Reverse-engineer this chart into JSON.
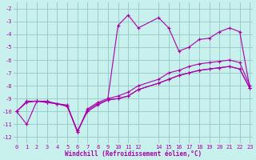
{
  "bg_color": "#c8f0ec",
  "grid_color": "#99cccc",
  "line_color": "#aa00aa",
  "xlim": [
    -0.3,
    23.3
  ],
  "ylim": [
    -12.5,
    -1.5
  ],
  "yticks": [
    -2,
    -3,
    -4,
    -5,
    -6,
    -7,
    -8,
    -9,
    -10,
    -11,
    -12
  ],
  "xticks": [
    0,
    1,
    2,
    3,
    4,
    5,
    6,
    7,
    8,
    9,
    10,
    11,
    12,
    14,
    15,
    16,
    17,
    18,
    19,
    20,
    21,
    22,
    23
  ],
  "xlabel": "Windchill (Refroidissement éolien,°C)",
  "series": [
    {
      "x": [
        0,
        1,
        2,
        3,
        4,
        5,
        6,
        7,
        8,
        9,
        10,
        11,
        12,
        14,
        15,
        16,
        17,
        18,
        19,
        20,
        21,
        22,
        23
      ],
      "y": [
        -10.0,
        -9.3,
        -9.2,
        -9.3,
        -9.4,
        -9.6,
        -11.6,
        -9.9,
        -9.4,
        -9.1,
        -9.0,
        -8.8,
        -8.3,
        -7.8,
        -7.5,
        -7.2,
        -7.0,
        -6.8,
        -6.7,
        -6.6,
        -6.5,
        -6.7,
        -8.2
      ]
    },
    {
      "x": [
        0,
        1,
        2,
        3,
        4,
        5,
        6,
        7,
        8,
        9,
        10,
        11,
        12,
        14,
        15,
        16,
        17,
        18,
        19,
        20,
        21,
        22,
        23
      ],
      "y": [
        -10.0,
        -9.2,
        -9.2,
        -9.3,
        -9.4,
        -9.5,
        -11.6,
        -9.8,
        -9.3,
        -9.0,
        -8.8,
        -8.5,
        -8.0,
        -7.5,
        -7.0,
        -6.8,
        -6.5,
        -6.3,
        -6.2,
        -6.1,
        -6.0,
        -6.2,
        -8.0
      ]
    },
    {
      "x": [
        9,
        10,
        11,
        12,
        14,
        15,
        16,
        17,
        18,
        19,
        20,
        21,
        22,
        23
      ],
      "y": [
        -9.0,
        -3.3,
        -2.5,
        -3.5,
        -2.7,
        -3.5,
        -5.3,
        -5.0,
        -4.4,
        -4.3,
        -3.8,
        -3.5,
        -3.8,
        -8.2
      ]
    },
    {
      "x": [
        0,
        1,
        2,
        3,
        4,
        5,
        6,
        7,
        8,
        9,
        10,
        11,
        12,
        14,
        15,
        16,
        17,
        18,
        19,
        20,
        21,
        22,
        23
      ],
      "y": [
        -10.0,
        -11.0,
        -9.2,
        -9.2,
        -9.4,
        -9.6,
        -11.5,
        -10.0,
        -9.5,
        -9.1,
        -9.0,
        -8.8,
        -8.3,
        -7.8,
        -7.5,
        -7.2,
        -7.0,
        -6.8,
        -6.7,
        -6.6,
        -6.5,
        -6.7,
        -8.2
      ]
    }
  ]
}
